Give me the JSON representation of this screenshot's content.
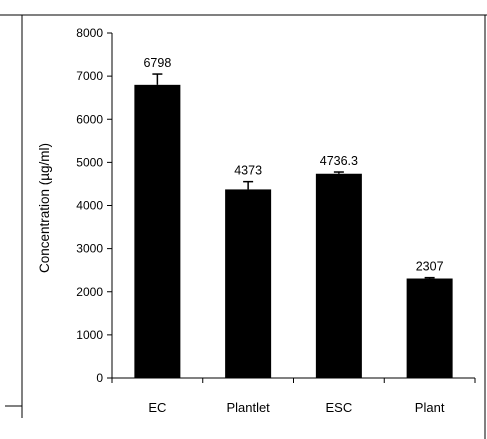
{
  "chart_data": {
    "type": "bar",
    "categories": [
      "EC",
      "Plantlet",
      "ESC",
      "Plant"
    ],
    "values": [
      6798,
      4373,
      4736.3,
      2307
    ],
    "value_labels": [
      "6798",
      "4373",
      "4736.3",
      "2307"
    ],
    "error_bars": [
      250,
      180,
      40,
      20
    ],
    "ylabel": "Concentration (µg/ml)",
    "xlabel": "",
    "ylim": [
      0,
      8000
    ],
    "yticks": [
      0,
      1000,
      2000,
      3000,
      4000,
      5000,
      6000,
      7000,
      8000
    ],
    "grid": false,
    "legend": "none",
    "bar_color": "#000000"
  }
}
